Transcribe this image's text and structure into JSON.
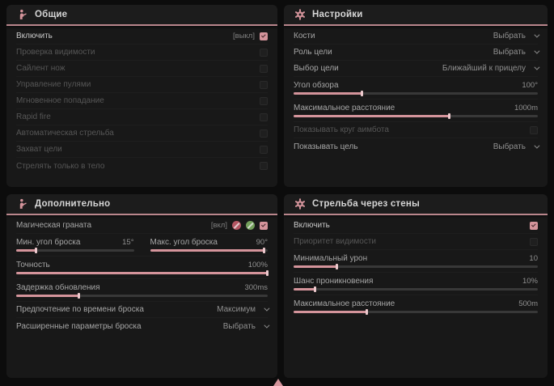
{
  "colors": {
    "page-bg": "#0c0c0c",
    "panel-bg": "#181818",
    "header-line": "#b9868c",
    "accent": "#d4949b",
    "accent-light": "#ecc9cd",
    "track": "#383838",
    "badge-pink": "#b25562",
    "badge-green": "#74a05c"
  },
  "panels": {
    "general": {
      "title": "Общие",
      "rows": [
        {
          "label": "Включить",
          "keybind": "[выкл]",
          "checked": true
        },
        {
          "label": "Проверка видимости"
        },
        {
          "label": "Сайлент нож"
        },
        {
          "label": "Управление пулями"
        },
        {
          "label": "Мгновенное попадание"
        },
        {
          "label": "Rapid fire"
        },
        {
          "label": "Автоматическая стрельба"
        },
        {
          "label": "Захват цели"
        },
        {
          "label": "Стрелять только в тело"
        }
      ]
    },
    "settings": {
      "title": "Настройки",
      "rows": [
        {
          "label": "Кости",
          "value": "Выбрать"
        },
        {
          "label": "Роль цели",
          "value": "Выбрать"
        },
        {
          "label": "Выбор цели",
          "value": "Ближайший к прицелу"
        },
        {
          "label": "Угол обзора",
          "value": "100°",
          "fill": "28%"
        },
        {
          "label": "Максимальное расстояние",
          "value": "1000m",
          "fill": "64%"
        },
        {
          "label": "Показывать круг аимбота"
        },
        {
          "label": "Показывать цель",
          "value": "Выбрать"
        }
      ]
    },
    "additional": {
      "title": "Дополнительно",
      "rows": [
        {
          "label": "Магическая граната",
          "keybind": "[вкл]",
          "checked": true
        },
        {
          "label": "Мин. угол броска",
          "value": "15°",
          "fill": "17%"
        },
        {
          "label": "Макс. угол броска",
          "value": "90°",
          "fill": "97%"
        },
        {
          "label": "Точность",
          "value": "100%",
          "fill": "100%"
        },
        {
          "label": "Задержка обновления",
          "value": "300ms",
          "fill": "25%"
        },
        {
          "label": "Предпочтение по времени броска",
          "value": "Максимум"
        },
        {
          "label": "Расширенные параметры броска",
          "value": "Выбрать"
        }
      ]
    },
    "walls": {
      "title": "Стрельба через стены",
      "rows": [
        {
          "label": "Включить",
          "checked": true
        },
        {
          "label": "Приоритет видимости"
        },
        {
          "label": "Минимальный урон",
          "value": "10",
          "fill": "18%"
        },
        {
          "label": "Шанс проникновения",
          "value": "10%",
          "fill": "9%"
        },
        {
          "label": "Максимальное расстояние",
          "value": "500m",
          "fill": "30%"
        }
      ]
    }
  }
}
